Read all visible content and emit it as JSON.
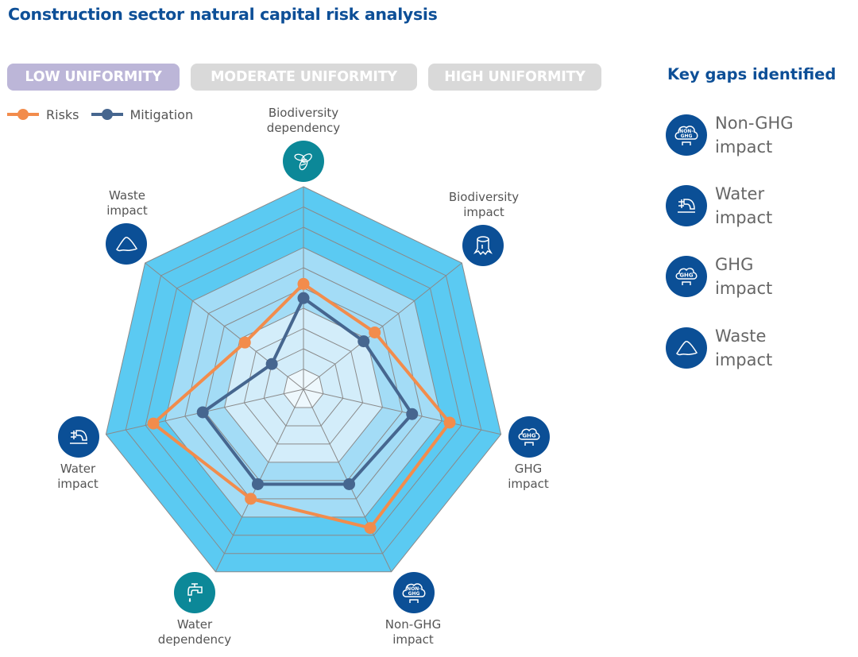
{
  "title": "Construction sector natural capital risk analysis",
  "filters": [
    {
      "label": "LOW UNIFORMITY",
      "active": true
    },
    {
      "label": "MODERATE UNIFORMITY",
      "active": false
    },
    {
      "label": "HIGH UNIFORMITY",
      "active": false
    }
  ],
  "colors": {
    "title": "#0d4f97",
    "risks": "#f28c4c",
    "mitigation": "#46668f",
    "ring_outer": "#5bcaf2",
    "ring_mid": "#a3dcf6",
    "ring_inner": "#d3edfa",
    "ring_core": "#eef8fd",
    "grid": "#8a8a8a",
    "dependency_icon": "#0c8898",
    "impact_icon": "#0b4f96"
  },
  "chart_data": {
    "type": "radar",
    "title": "Construction sector natural capital risk analysis",
    "categories": [
      {
        "line1": "Biodiversity",
        "line2": "dependency",
        "icon": "bee-icon",
        "kind": "dependency"
      },
      {
        "line1": "Biodiversity",
        "line2": "impact",
        "icon": "tree-stump-icon",
        "kind": "impact"
      },
      {
        "line1": "GHG",
        "line2": "impact",
        "icon": "ghg-cloud-icon",
        "kind": "impact"
      },
      {
        "line1": "Non-GHG",
        "line2": "impact",
        "icon": "non-ghg-cloud-icon",
        "kind": "impact"
      },
      {
        "line1": "Water",
        "line2": "dependency",
        "icon": "water-tap-icon",
        "kind": "dependency"
      },
      {
        "line1": "Water",
        "line2": "impact",
        "icon": "discharge-pipe-icon",
        "kind": "impact"
      },
      {
        "line1": "Waste",
        "line2": "impact",
        "icon": "waste-pile-icon",
        "kind": "impact"
      }
    ],
    "rlim": [
      0,
      10
    ],
    "rings": 10,
    "series": [
      {
        "name": "Risks",
        "values": [
          5.2,
          4.5,
          7.4,
          7.6,
          6.0,
          7.6,
          3.7
        ]
      },
      {
        "name": "Mitigation",
        "values": [
          4.5,
          3.8,
          5.5,
          5.2,
          5.2,
          5.1,
          2.0
        ]
      }
    ],
    "legend": "top-left",
    "grid": true
  },
  "gaps": {
    "title": "Key gaps identified",
    "items": [
      {
        "line1": "Non-GHG",
        "line2": "impact",
        "icon": "non-ghg-cloud-icon"
      },
      {
        "line1": "Water",
        "line2": "impact",
        "icon": "discharge-pipe-icon"
      },
      {
        "line1": "GHG",
        "line2": "impact",
        "icon": "ghg-cloud-icon"
      },
      {
        "line1": "Waste",
        "line2": "impact",
        "icon": "waste-pile-icon"
      }
    ]
  }
}
